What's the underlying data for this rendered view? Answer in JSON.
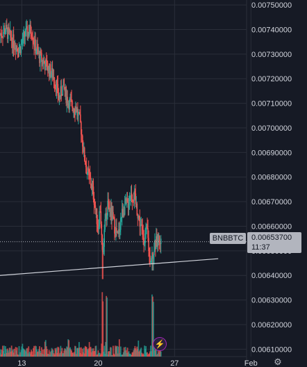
{
  "chart_data": {
    "type": "candlestick",
    "symbol": "BNBBTC",
    "x_ticks": [
      "13",
      "20",
      "27",
      "Feb"
    ],
    "y_ticks": [
      "0.00750000",
      "0.00740000",
      "0.00730000",
      "0.00720000",
      "0.00710000",
      "0.00700000",
      "0.00690000",
      "0.00680000",
      "0.00670000",
      "0.00660000",
      "0.00650000",
      "0.00640000",
      "0.00630000",
      "0.00620000",
      "0.00610000"
    ],
    "y_tick_values": [
      0.0075,
      0.0074,
      0.0073,
      0.0072,
      0.0071,
      0.007,
      0.0069,
      0.0068,
      0.0067,
      0.0066,
      0.0065,
      0.0064,
      0.0063,
      0.0062,
      0.0061
    ],
    "ylim": [
      0.00607,
      0.00752
    ],
    "last_price": "0.00653700",
    "countdown": "11:37",
    "trend_line": {
      "from_day": 11,
      "to_day": 31,
      "from_value": 0.0064,
      "to_value": 0.006468
    },
    "x_tick_days": [
      13,
      20,
      27,
      34
    ],
    "xlim_days": [
      11.0,
      33.6
    ],
    "price_path": [
      [
        11.0,
        0.00738
      ],
      [
        11.5,
        0.0074
      ],
      [
        12.2,
        0.00735
      ],
      [
        12.8,
        0.00732
      ],
      [
        13.3,
        0.00738
      ],
      [
        13.9,
        0.0074
      ],
      [
        14.2,
        0.00733
      ],
      [
        14.6,
        0.00729
      ],
      [
        15.1,
        0.00726
      ],
      [
        15.6,
        0.00723
      ],
      [
        16.0,
        0.0072
      ],
      [
        16.4,
        0.00712
      ],
      [
        16.8,
        0.00717
      ],
      [
        17.2,
        0.00711
      ],
      [
        17.6,
        0.00709
      ],
      [
        18.0,
        0.00708
      ],
      [
        18.4,
        0.00701
      ],
      [
        18.7,
        0.00689
      ],
      [
        19.0,
        0.00682
      ],
      [
        19.3,
        0.00678
      ],
      [
        19.6,
        0.00672
      ],
      [
        19.8,
        0.00665
      ],
      [
        20.0,
        0.0066
      ],
      [
        20.2,
        0.00668
      ],
      [
        20.4,
        0.00645
      ],
      [
        20.6,
        0.00663
      ],
      [
        20.9,
        0.00668
      ],
      [
        21.2,
        0.00665
      ],
      [
        21.5,
        0.0066
      ],
      [
        21.8,
        0.00655
      ],
      [
        22.1,
        0.00664
      ],
      [
        22.4,
        0.00668
      ],
      [
        22.7,
        0.00669
      ],
      [
        23.0,
        0.00673
      ],
      [
        23.3,
        0.00672
      ],
      [
        23.6,
        0.00666
      ],
      [
        23.9,
        0.0066
      ],
      [
        24.2,
        0.00655
      ],
      [
        24.5,
        0.00658
      ],
      [
        24.7,
        0.00647
      ],
      [
        24.9,
        0.00648
      ],
      [
        25.2,
        0.00652
      ],
      [
        25.5,
        0.00655
      ],
      [
        25.8,
        0.006537
      ]
    ],
    "volume_spikes_days": [
      20.4,
      25.0,
      20.8
    ]
  },
  "icons": {
    "bolt": "lightning-icon",
    "gear": "settings-gear-icon"
  },
  "colors": {
    "up": "#26a69a",
    "down": "#ef5350",
    "grid": "#2a2e39",
    "text": "#d1d4dc",
    "trend": "#d1d4dc"
  }
}
